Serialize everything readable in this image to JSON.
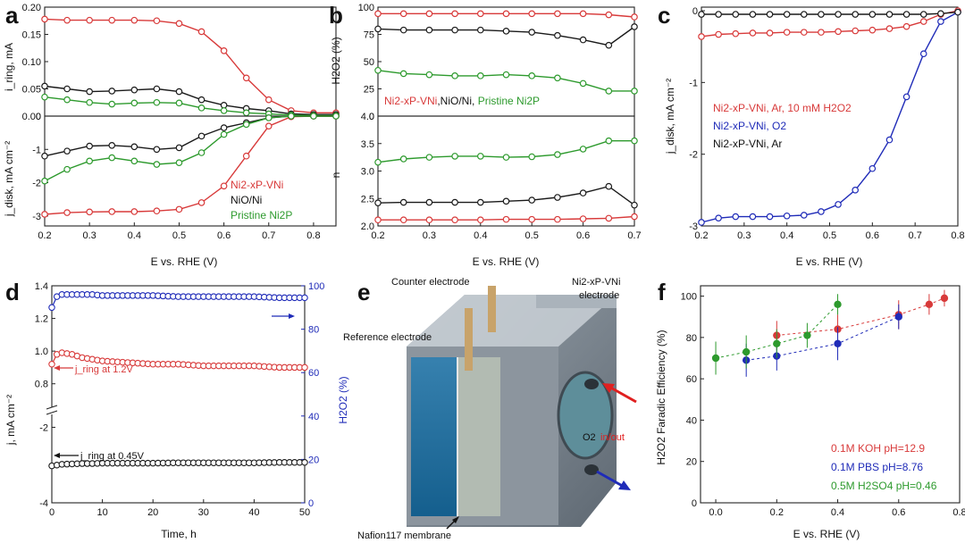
{
  "figure": {
    "panel_letters": [
      "a",
      "b",
      "c",
      "d",
      "e",
      "f"
    ]
  },
  "colors": {
    "red": "#d83a3a",
    "black": "#1a1a1a",
    "green": "#2d9a2d",
    "blue": "#1f2bb8",
    "ired": "#e02020"
  },
  "panel_a": {
    "xlabel": "E vs. RHE (V)",
    "top_ylabel": "i_ring, mA",
    "bottom_ylabel": "j_disk, mA cm⁻²",
    "legend": [
      "Ni2-xP-VNi",
      "NiO/Ni",
      "Pristine Ni2P"
    ]
  },
  "panel_b": {
    "xlabel": "E vs. RHE (V)",
    "top_ylabel": "H2O2 (%)",
    "bottom_ylabel": "n",
    "legend": [
      "Ni2-xP-VNi",
      ",NiO/Ni, ",
      "Pristine Ni2P"
    ]
  },
  "panel_c": {
    "xlabel": "E vs. RHE (V)",
    "ylabel": "j_disk, mA cm⁻²",
    "legend": [
      "Ni2-xP-VNi, Ar, 10 mM H2O2",
      "Ni2-xP-VNi, O2",
      "Ni2-xP-VNi, Ar"
    ]
  },
  "panel_d": {
    "xlabel": "Time, h",
    "ylabel": "j, mA cm⁻²",
    "y2label": "H2O2 (%)",
    "annotation_ring": "j_ring at 1.2V",
    "annotation_disk": "j_ring at 0.45V"
  },
  "panel_e": {
    "labels": {
      "counter": "Counter electrode",
      "working_1": "Ni2-xP-VNi",
      "working_2": "electrode",
      "reference": "Reference electrode",
      "o2": "O2",
      "inout": "in/out",
      "membrane": "Nafion117 membrane"
    }
  },
  "panel_f": {
    "xlabel": "E vs. RHE (V)",
    "ylabel": "H2O2 Faradic Efficiency (%)",
    "legend": [
      "0.1M KOH pH=12.9",
      "0.1M PBS  pH=8.76",
      "0.5M H2SO4  pH=0.46"
    ]
  },
  "chart_data": [
    {
      "panel": "a (top)",
      "type": "line",
      "xlabel": "E vs. RHE (V)",
      "ylabel": "i_ring, mA",
      "xlim": [
        0.2,
        0.85
      ],
      "ylim": [
        0,
        0.2
      ],
      "xticks": [
        0.2,
        0.3,
        0.4,
        0.5,
        0.6,
        0.7,
        0.8
      ],
      "yticks": [
        0.0,
        0.05,
        0.1,
        0.15,
        0.2
      ],
      "series": [
        {
          "name": "Ni2-xP-VNi",
          "color": "red",
          "x": [
            0.2,
            0.25,
            0.3,
            0.35,
            0.4,
            0.45,
            0.5,
            0.55,
            0.6,
            0.65,
            0.7,
            0.75,
            0.8,
            0.85
          ],
          "values": [
            0.178,
            0.176,
            0.176,
            0.176,
            0.176,
            0.175,
            0.17,
            0.155,
            0.12,
            0.07,
            0.03,
            0.01,
            0.006,
            0.006
          ]
        },
        {
          "name": "NiO/Ni",
          "color": "black",
          "x": [
            0.2,
            0.25,
            0.3,
            0.35,
            0.4,
            0.45,
            0.5,
            0.55,
            0.6,
            0.65,
            0.7,
            0.75,
            0.8,
            0.85
          ],
          "values": [
            0.055,
            0.05,
            0.045,
            0.046,
            0.048,
            0.05,
            0.045,
            0.03,
            0.02,
            0.014,
            0.01,
            0.004,
            0.003,
            0.003
          ]
        },
        {
          "name": "Pristine Ni2P",
          "color": "green",
          "x": [
            0.2,
            0.25,
            0.3,
            0.35,
            0.4,
            0.45,
            0.5,
            0.55,
            0.6,
            0.65,
            0.7,
            0.75,
            0.8,
            0.85
          ],
          "values": [
            0.035,
            0.03,
            0.025,
            0.022,
            0.024,
            0.025,
            0.024,
            0.015,
            0.01,
            0.006,
            0.004,
            0.002,
            0.001,
            0.001
          ]
        }
      ]
    },
    {
      "panel": "a (bottom)",
      "type": "line",
      "xlabel": "E vs. RHE (V)",
      "ylabel": "j_disk, mA cm⁻²",
      "xlim": [
        0.2,
        0.85
      ],
      "ylim": [
        -3.3,
        0
      ],
      "xticks": [
        0.2,
        0.3,
        0.4,
        0.5,
        0.6,
        0.7,
        0.8
      ],
      "yticks": [
        -3,
        -2,
        -1,
        0
      ],
      "series": [
        {
          "name": "Ni2-xP-VNi",
          "color": "red",
          "x": [
            0.2,
            0.25,
            0.3,
            0.35,
            0.4,
            0.45,
            0.5,
            0.55,
            0.6,
            0.65,
            0.7,
            0.75,
            0.8,
            0.85
          ],
          "values": [
            -2.95,
            -2.9,
            -2.88,
            -2.87,
            -2.87,
            -2.85,
            -2.8,
            -2.6,
            -2.1,
            -1.2,
            -0.3,
            -0.02,
            0,
            0
          ]
        },
        {
          "name": "NiO/Ni",
          "color": "black",
          "x": [
            0.2,
            0.25,
            0.3,
            0.35,
            0.4,
            0.45,
            0.5,
            0.55,
            0.6,
            0.65,
            0.7,
            0.75,
            0.8,
            0.85
          ],
          "values": [
            -1.2,
            -1.05,
            -0.9,
            -0.88,
            -0.92,
            -1.0,
            -0.95,
            -0.6,
            -0.35,
            -0.2,
            -0.05,
            0,
            0,
            0
          ]
        },
        {
          "name": "Pristine Ni2P",
          "color": "green",
          "x": [
            0.2,
            0.25,
            0.3,
            0.35,
            0.4,
            0.45,
            0.5,
            0.55,
            0.6,
            0.65,
            0.7,
            0.75,
            0.8,
            0.85
          ],
          "values": [
            -1.95,
            -1.6,
            -1.35,
            -1.25,
            -1.35,
            -1.45,
            -1.4,
            -1.1,
            -0.55,
            -0.25,
            -0.05,
            0,
            0,
            0
          ]
        }
      ]
    },
    {
      "panel": "b (top)",
      "type": "line",
      "xlabel": "E vs. RHE (V)",
      "ylabel": "H2O2 (%)",
      "xlim": [
        0.2,
        0.7
      ],
      "ylim": [
        0,
        100
      ],
      "xticks": [
        0.2,
        0.3,
        0.4,
        0.5,
        0.6,
        0.7
      ],
      "yticks": [
        0,
        25,
        50,
        75,
        100
      ],
      "series": [
        {
          "name": "Ni2-xP-VNi",
          "color": "red",
          "x": [
            0.2,
            0.25,
            0.3,
            0.35,
            0.4,
            0.45,
            0.5,
            0.55,
            0.6,
            0.65,
            0.7
          ],
          "values": [
            94,
            94,
            94,
            94,
            94,
            94,
            94,
            94,
            94,
            93,
            91
          ]
        },
        {
          "name": "NiO/Ni",
          "color": "black",
          "x": [
            0.2,
            0.25,
            0.3,
            0.35,
            0.4,
            0.45,
            0.5,
            0.55,
            0.6,
            0.65,
            0.7
          ],
          "values": [
            80,
            79,
            79,
            79,
            79,
            78,
            77,
            74,
            70,
            65,
            82
          ]
        },
        {
          "name": "Pristine Ni2P",
          "color": "green",
          "x": [
            0.2,
            0.25,
            0.3,
            0.35,
            0.4,
            0.45,
            0.5,
            0.55,
            0.6,
            0.65,
            0.7
          ],
          "values": [
            42,
            39,
            38,
            37,
            37,
            38,
            37,
            35,
            30,
            23,
            23
          ]
        }
      ]
    },
    {
      "panel": "b (bottom)",
      "type": "line",
      "xlabel": "E vs. RHE (V)",
      "ylabel": "n",
      "xlim": [
        0.2,
        0.7
      ],
      "ylim": [
        2.0,
        4.0
      ],
      "xticks": [
        0.2,
        0.3,
        0.4,
        0.5,
        0.6,
        0.7
      ],
      "yticks": [
        2.0,
        2.5,
        3.0,
        3.5,
        4.0
      ],
      "series": [
        {
          "name": "Ni2-xP-VNi",
          "color": "red",
          "x": [
            0.2,
            0.25,
            0.3,
            0.35,
            0.4,
            0.45,
            0.5,
            0.55,
            0.6,
            0.65,
            0.7
          ],
          "values": [
            2.11,
            2.11,
            2.11,
            2.11,
            2.11,
            2.12,
            2.12,
            2.12,
            2.13,
            2.14,
            2.17
          ]
        },
        {
          "name": "NiO/Ni",
          "color": "black",
          "x": [
            0.2,
            0.25,
            0.3,
            0.35,
            0.4,
            0.45,
            0.5,
            0.55,
            0.6,
            0.65,
            0.7
          ],
          "values": [
            2.42,
            2.43,
            2.43,
            2.43,
            2.43,
            2.45,
            2.47,
            2.52,
            2.6,
            2.72,
            2.38
          ]
        },
        {
          "name": "Pristine Ni2P",
          "color": "green",
          "x": [
            0.2,
            0.25,
            0.3,
            0.35,
            0.4,
            0.45,
            0.5,
            0.55,
            0.6,
            0.65,
            0.7
          ],
          "values": [
            3.16,
            3.22,
            3.25,
            3.27,
            3.27,
            3.25,
            3.26,
            3.3,
            3.4,
            3.55,
            3.55
          ]
        }
      ]
    },
    {
      "panel": "c",
      "type": "line",
      "xlabel": "E vs. RHE (V)",
      "ylabel": "j_disk, mA cm⁻²",
      "xlim": [
        0.2,
        0.8
      ],
      "ylim": [
        -3.0,
        0.05
      ],
      "xticks": [
        0.2,
        0.3,
        0.4,
        0.5,
        0.6,
        0.7,
        0.8
      ],
      "yticks": [
        -3,
        -2,
        -1,
        0
      ],
      "series": [
        {
          "name": "Ni2-xP-VNi, Ar, 10 mM H2O2",
          "color": "red",
          "x": [
            0.2,
            0.24,
            0.28,
            0.32,
            0.36,
            0.4,
            0.44,
            0.48,
            0.52,
            0.56,
            0.6,
            0.64,
            0.68,
            0.72,
            0.76,
            0.8
          ],
          "values": [
            -0.36,
            -0.33,
            -0.32,
            -0.31,
            -0.31,
            -0.3,
            -0.3,
            -0.3,
            -0.29,
            -0.28,
            -0.27,
            -0.25,
            -0.22,
            -0.15,
            -0.05,
            0
          ]
        },
        {
          "name": "Ni2-xP-VNi, O2",
          "color": "blue",
          "x": [
            0.2,
            0.24,
            0.28,
            0.32,
            0.36,
            0.4,
            0.44,
            0.48,
            0.52,
            0.56,
            0.6,
            0.64,
            0.68,
            0.72,
            0.76,
            0.8
          ],
          "values": [
            -2.95,
            -2.89,
            -2.87,
            -2.87,
            -2.87,
            -2.86,
            -2.85,
            -2.8,
            -2.7,
            -2.5,
            -2.2,
            -1.8,
            -1.2,
            -0.6,
            -0.15,
            -0.02
          ]
        },
        {
          "name": "Ni2-xP-VNi, Ar",
          "color": "black",
          "x": [
            0.2,
            0.24,
            0.28,
            0.32,
            0.36,
            0.4,
            0.44,
            0.48,
            0.52,
            0.56,
            0.6,
            0.64,
            0.68,
            0.72,
            0.76,
            0.8
          ],
          "values": [
            -0.05,
            -0.05,
            -0.05,
            -0.05,
            -0.05,
            -0.05,
            -0.05,
            -0.05,
            -0.05,
            -0.05,
            -0.05,
            -0.05,
            -0.05,
            -0.05,
            -0.04,
            -0.02
          ]
        }
      ]
    },
    {
      "panel": "d",
      "type": "line",
      "xlabel": "Time, h",
      "ylabel": "j, mA cm⁻²",
      "y2label": "H2O2 (%)",
      "xlim": [
        0,
        50
      ],
      "xticks": [
        0,
        10,
        20,
        30,
        40,
        50
      ],
      "ylim_upper": [
        0.7,
        1.4
      ],
      "yticks_upper": [
        0.8,
        1.0,
        1.2,
        1.4
      ],
      "ylim_lower": [
        -4,
        -1.8
      ],
      "yticks_lower": [
        -4,
        -2
      ],
      "y2lim": [
        0,
        100
      ],
      "y2ticks": [
        0,
        20,
        40,
        60,
        80,
        100
      ],
      "series": [
        {
          "name": "j_ring at 1.2V",
          "color": "red",
          "axis": "upper",
          "x": [
            0,
            1,
            2,
            4,
            6,
            8,
            10,
            15,
            20,
            25,
            30,
            35,
            40,
            45,
            50
          ],
          "values": [
            0.92,
            0.98,
            0.99,
            0.98,
            0.96,
            0.95,
            0.94,
            0.93,
            0.92,
            0.92,
            0.91,
            0.91,
            0.91,
            0.9,
            0.9
          ]
        },
        {
          "name": "j_ring at 0.45V",
          "color": "black",
          "axis": "lower",
          "x": [
            0,
            1,
            2,
            4,
            6,
            8,
            10,
            15,
            20,
            25,
            30,
            35,
            40,
            45,
            50
          ],
          "values": [
            -3.02,
            -3.0,
            -2.98,
            -2.97,
            -2.96,
            -2.96,
            -2.95,
            -2.95,
            -2.95,
            -2.94,
            -2.94,
            -2.94,
            -2.94,
            -2.93,
            -2.93
          ]
        },
        {
          "name": "H2O2 (%)",
          "color": "blue",
          "axis": "right",
          "x": [
            0,
            1,
            2,
            4,
            6,
            8,
            10,
            15,
            20,
            25,
            30,
            35,
            40,
            45,
            50
          ],
          "values": [
            90,
            95,
            96,
            96,
            96,
            96,
            95.5,
            95.5,
            95.5,
            95,
            95,
            95,
            95,
            94.5,
            94.5
          ]
        }
      ]
    },
    {
      "panel": "f",
      "type": "scatter",
      "xlabel": "E vs. RHE (V)",
      "ylabel": "H2O2 Faradic Efficiency (%)",
      "xlim": [
        -0.05,
        0.8
      ],
      "ylim": [
        0,
        105
      ],
      "xticks": [
        0.0,
        0.2,
        0.4,
        0.6,
        0.8
      ],
      "yticks": [
        0,
        20,
        40,
        60,
        80,
        100
      ],
      "series": [
        {
          "name": "0.1M KOH pH=12.9",
          "color": "red",
          "x": [
            0.2,
            0.4,
            0.6,
            0.7,
            0.75
          ],
          "values": [
            81,
            84,
            91,
            96,
            99
          ],
          "errors": [
            7,
            7,
            7,
            5,
            4
          ]
        },
        {
          "name": "0.1M PBS  pH=8.76",
          "color": "blue",
          "x": [
            0.1,
            0.2,
            0.4,
            0.6
          ],
          "values": [
            69,
            71,
            77,
            90
          ],
          "errors": [
            8,
            7,
            8,
            6
          ]
        },
        {
          "name": "0.5M H2SO4  pH=0.46",
          "color": "green",
          "x": [
            0.0,
            0.1,
            0.2,
            0.3,
            0.4
          ],
          "values": [
            70,
            73,
            77,
            81,
            96
          ],
          "errors": [
            8,
            8,
            7,
            6,
            5
          ]
        }
      ]
    }
  ]
}
